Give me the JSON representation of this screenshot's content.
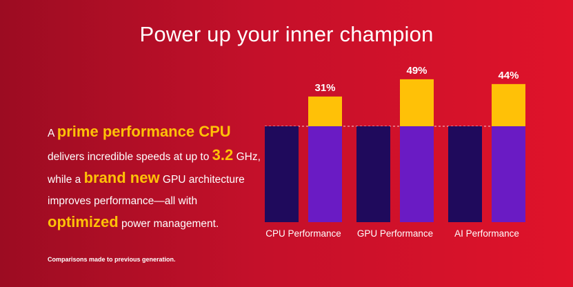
{
  "title": "Power up your inner champion",
  "body": {
    "t1": "A ",
    "h1": "prime performance CPU",
    "t2": " delivers incredible speeds at up to ",
    "h2": "3.2",
    "t3": " GHz, while a ",
    "h3": "brand new",
    "t4": " GPU architecture improves performance—all with ",
    "h4": "optimized",
    "t5": " power management."
  },
  "footnote": "Comparisons made to previous generation.",
  "colors": {
    "background_start": "#9c0c22",
    "background_end": "#e0132a",
    "highlight": "#ffc107",
    "previous_bar": "#1f0a5c",
    "current_bar": "#6a1bc4",
    "gain_bar": "#ffc107"
  },
  "chart_data": {
    "type": "bar",
    "categories": [
      "CPU Performance",
      "GPU Performance",
      "AI Performance"
    ],
    "baseline": 100,
    "series": [
      {
        "values": [
          100,
          100,
          100
        ]
      },
      {
        "values": [
          131,
          149,
          144
        ]
      }
    ],
    "gain_labels": [
      "31%",
      "49%",
      "44%"
    ],
    "gains": [
      31,
      49,
      44
    ],
    "ylim": [
      0,
      154
    ],
    "grid": false,
    "legend": "none"
  }
}
